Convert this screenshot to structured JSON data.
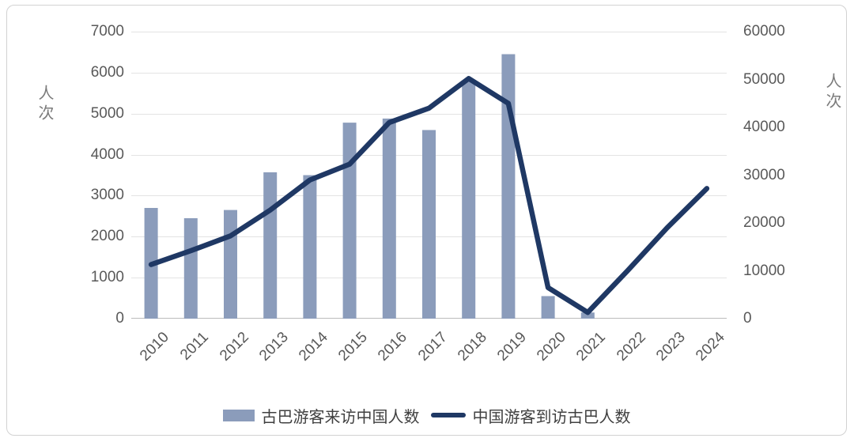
{
  "chart_data": {
    "type": "combo-bar-line",
    "title": "",
    "categories": [
      "2010",
      "2011",
      "2012",
      "2013",
      "2014",
      "2015",
      "2016",
      "2017",
      "2018",
      "2019",
      "2020",
      "2021",
      "2022",
      "2023",
      "2024"
    ],
    "series": [
      {
        "name": "古巴游客来访中国人数",
        "type": "bar",
        "axis": "left",
        "color": "#8b9cbb",
        "values": [
          2700,
          2450,
          2650,
          3570,
          3500,
          4780,
          4880,
          4600,
          5800,
          6450,
          550,
          150,
          null,
          null,
          null
        ]
      },
      {
        "name": "中国游客到访古巴人数",
        "type": "line",
        "axis": "right",
        "color": "#1f3864",
        "values": [
          11300,
          14200,
          17300,
          22700,
          29000,
          32300,
          41000,
          44000,
          50200,
          45000,
          6500,
          1300,
          10000,
          19000,
          27200
        ]
      }
    ],
    "left_axis": {
      "title": "人次",
      "min": 0,
      "max": 7000,
      "step": 1000,
      "ticks": [
        "0",
        "1000",
        "2000",
        "3000",
        "4000",
        "5000",
        "6000",
        "7000"
      ]
    },
    "right_axis": {
      "title": "人次",
      "min": 0,
      "max": 60000,
      "step": 10000,
      "ticks": [
        "0",
        "10000",
        "20000",
        "30000",
        "40000",
        "50000",
        "60000"
      ]
    },
    "grid": true,
    "legend_position": "bottom"
  },
  "colors": {
    "bar": "#8b9cbb",
    "line": "#1f3864",
    "gridline": "#e3e3e3",
    "axis_line": "#bcbcbc",
    "tick_text": "#595959",
    "axis_title_text": "#7b7b7b",
    "legend_text": "#404040",
    "card_border": "#d2d2d2"
  }
}
